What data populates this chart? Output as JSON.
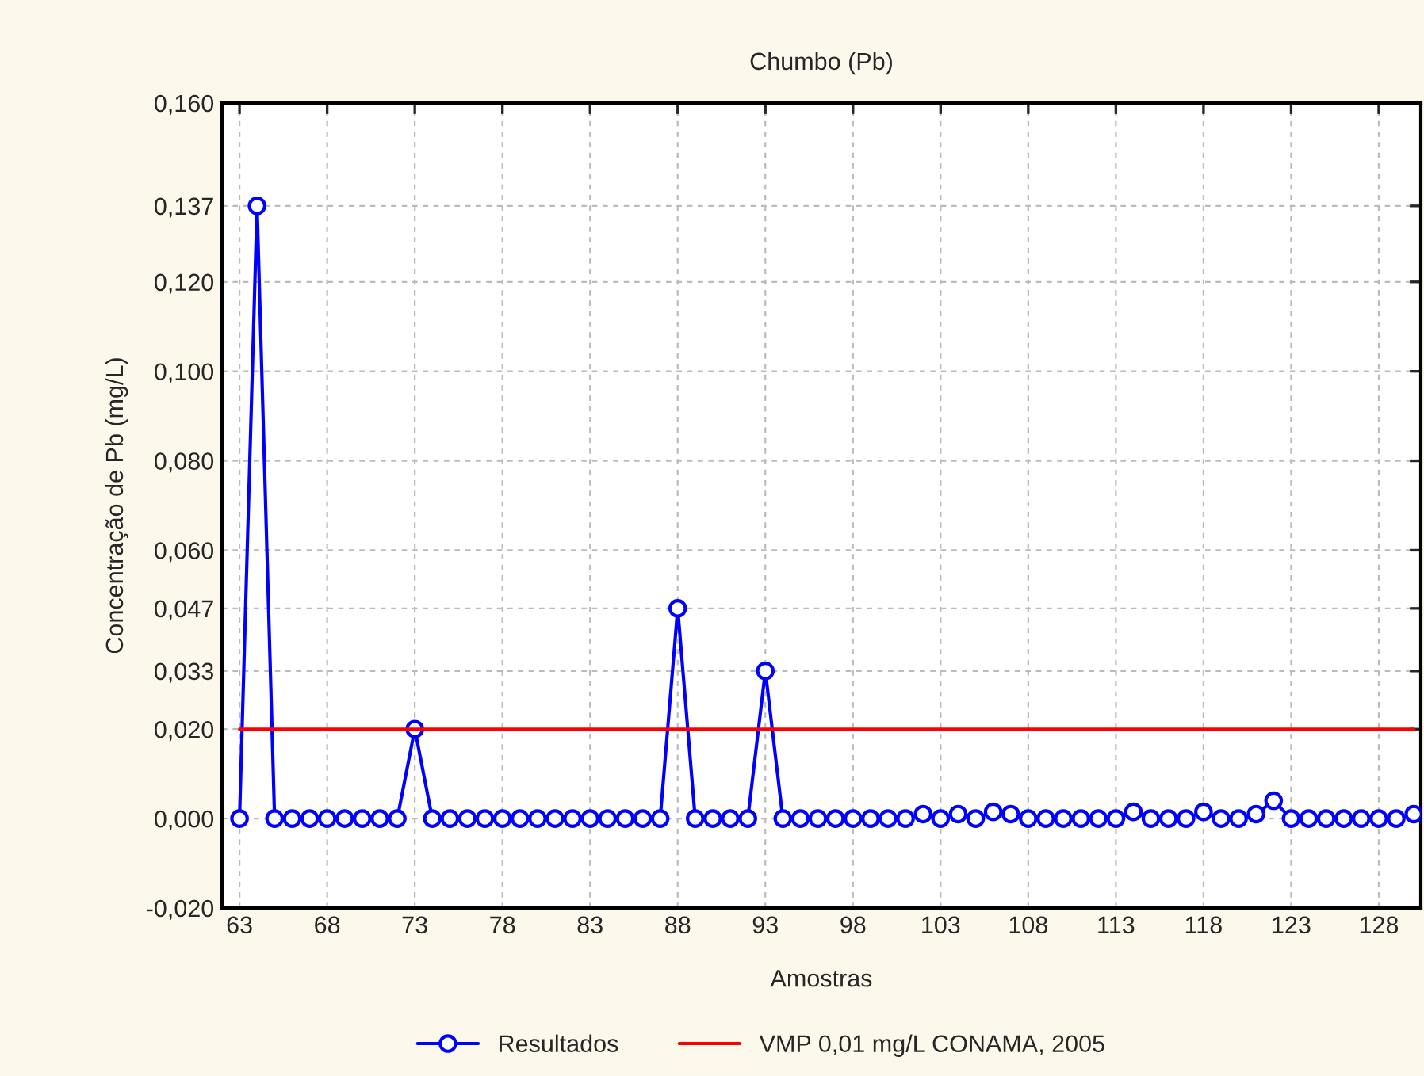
{
  "chart_data": {
    "type": "line",
    "title": "Chumbo (Pb)",
    "xlabel": "Amostras",
    "ylabel": "Concentração de Pb (mg/L)",
    "xlim": [
      62,
      130.4
    ],
    "xticks": [
      63,
      68,
      73,
      78,
      83,
      88,
      93,
      98,
      103,
      108,
      113,
      118,
      123,
      128
    ],
    "ylim": [
      -0.02,
      0.16
    ],
    "yticks": [
      {
        "value": -0.02,
        "label": "-0,020"
      },
      {
        "value": 0,
        "label": "0,000"
      },
      {
        "value": 0.02,
        "label": "0,020"
      },
      {
        "value": 0.033,
        "label": "0,033"
      },
      {
        "value": 0.047,
        "label": "0,047"
      },
      {
        "value": 0.06,
        "label": "0,060"
      },
      {
        "value": 0.08,
        "label": "0,080"
      },
      {
        "value": 0.1,
        "label": "0,100"
      },
      {
        "value": 0.12,
        "label": "0,120"
      },
      {
        "value": 0.137,
        "label": "0,137"
      },
      {
        "value": 0.16,
        "label": "0,160"
      }
    ],
    "grid": true,
    "legend": "bottom",
    "series": [
      {
        "name": "Resultados",
        "color": "#0000ff",
        "marker": "circle",
        "line_style": "solid",
        "x": [
          63,
          64,
          65,
          66,
          67,
          68,
          69,
          70,
          71,
          72,
          73,
          74,
          75,
          76,
          77,
          78,
          79,
          80,
          81,
          82,
          83,
          84,
          85,
          86,
          87,
          88,
          89,
          90,
          91,
          92,
          93,
          94,
          95,
          96,
          97,
          98,
          99,
          100,
          101,
          102,
          103,
          104,
          105,
          106,
          107,
          108,
          109,
          110,
          111,
          112,
          113,
          114,
          115,
          116,
          117,
          118,
          119,
          120,
          121,
          122,
          123,
          124,
          125,
          126,
          127,
          128,
          129,
          130
        ],
        "values": [
          0,
          0.137,
          0,
          0,
          0,
          0,
          0,
          0,
          0,
          0,
          0.02,
          0,
          0,
          0,
          0,
          0,
          0,
          0,
          0,
          0,
          0,
          0,
          0,
          0,
          0,
          0.047,
          0,
          0,
          0,
          0,
          0.033,
          0,
          0,
          0,
          0,
          0,
          0,
          0,
          0,
          0.001,
          0,
          0.001,
          0,
          0.0015,
          0.001,
          0,
          0,
          0,
          0,
          0,
          0,
          0.0015,
          0,
          0,
          0,
          0.0015,
          0,
          0,
          0.001,
          0.004,
          0,
          0,
          0,
          0,
          0,
          0,
          0,
          0.001
        ]
      },
      {
        "name": "VMP 0,01 mg/L CONAMA, 2005",
        "color": "#ff0000",
        "marker": "none",
        "line_style": "solid",
        "x": [
          63,
          130
        ],
        "values": [
          0.02,
          0.02
        ]
      }
    ]
  }
}
